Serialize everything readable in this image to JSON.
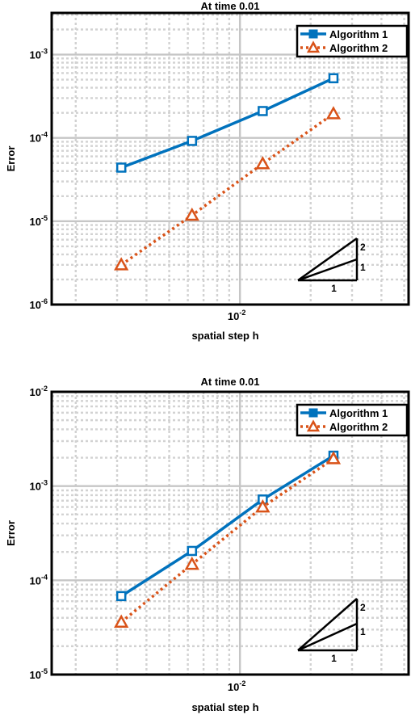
{
  "chart_data": [
    {
      "type": "line",
      "title": "At time 0.01",
      "xlabel": "spatial step h",
      "ylabel": "Error",
      "xscale": "log",
      "yscale": "log",
      "xlim": [
        0.00158,
        0.0522
      ],
      "ylim": [
        1e-06,
        0.00316
      ],
      "x": [
        0.003125,
        0.00625,
        0.0125,
        0.025
      ],
      "xticks": [
        {
          "base": "10",
          "exp": "-2",
          "value": 0.01
        }
      ],
      "yticks": [
        {
          "base": "10",
          "exp": "-6",
          "value": 1e-06
        },
        {
          "base": "10",
          "exp": "-5",
          "value": 1e-05
        },
        {
          "base": "10",
          "exp": "-4",
          "value": 0.0001
        },
        {
          "base": "10",
          "exp": "-3",
          "value": 0.001
        }
      ],
      "grid": true,
      "legend_position": "top-right",
      "series": [
        {
          "name": "Algorithm 1",
          "color": "#0072BD",
          "marker": "square",
          "line": "solid",
          "values": [
            4.4e-05,
            9.2e-05,
            0.00021,
            0.00052
          ]
        },
        {
          "name": "Algorithm 2",
          "color": "#D95319",
          "marker": "triangle",
          "line": "dotted",
          "values": [
            3e-06,
            1.18e-05,
            4.9e-05,
            0.000195
          ]
        }
      ],
      "slope_triangle": {
        "labels": [
          "2",
          "1",
          "1"
        ]
      }
    },
    {
      "type": "line",
      "title": "At time 0.01",
      "xlabel": "spatial step h",
      "ylabel": "Error",
      "xscale": "log",
      "yscale": "log",
      "xlim": [
        0.00158,
        0.0522
      ],
      "ylim": [
        1e-05,
        0.01
      ],
      "x": [
        0.003125,
        0.00625,
        0.0125,
        0.025
      ],
      "xticks": [
        {
          "base": "10",
          "exp": "-2",
          "value": 0.01
        }
      ],
      "yticks": [
        {
          "base": "10",
          "exp": "-5",
          "value": 1e-05
        },
        {
          "base": "10",
          "exp": "-4",
          "value": 0.0001
        },
        {
          "base": "10",
          "exp": "-3",
          "value": 0.001
        },
        {
          "base": "10",
          "exp": "-2",
          "value": 0.01
        }
      ],
      "grid": true,
      "legend_position": "top-right",
      "series": [
        {
          "name": "Algorithm 1",
          "color": "#0072BD",
          "marker": "square",
          "line": "solid",
          "values": [
            6.8e-05,
            0.000205,
            0.00072,
            0.0021
          ]
        },
        {
          "name": "Algorithm 2",
          "color": "#D95319",
          "marker": "triangle",
          "line": "dotted",
          "values": [
            3.6e-05,
            0.000148,
            0.0006,
            0.00195
          ]
        }
      ],
      "slope_triangle": {
        "labels": [
          "2",
          "1",
          "1"
        ]
      }
    }
  ]
}
